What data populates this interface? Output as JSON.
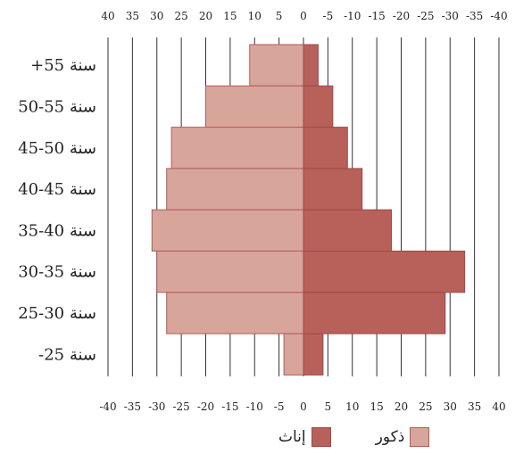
{
  "chart_data": {
    "type": "bar",
    "orientation": "horizontal",
    "layout": "population-pyramid",
    "categories": [
      "+55 سنة",
      "50-55 سنة",
      "45-50 سنة",
      "40-45 سنة",
      "35-40 سنة",
      "30-35 سنة",
      "25-30 سنة",
      "-25 سنة"
    ],
    "series": [
      {
        "name": "ذكور",
        "side": "left",
        "color": "#d8a59b",
        "values": [
          11,
          20,
          27,
          28,
          31,
          30,
          28,
          4
        ]
      },
      {
        "name": "إناث",
        "side": "right",
        "color": "#b8605a",
        "values": [
          3,
          6,
          9,
          12,
          18,
          33,
          29,
          4
        ]
      }
    ],
    "xlim": [
      -40,
      40
    ],
    "top_tick_labels": [
      "40",
      "35",
      "30",
      "25",
      "20",
      "15",
      "10",
      "5",
      "0",
      "-5",
      "-10",
      "-15",
      "-20",
      "-25",
      "-30",
      "-35",
      "-40"
    ],
    "bottom_tick_labels": [
      "-40",
      "-35",
      "-30",
      "-25",
      "-20",
      "-15",
      "-10",
      "-5",
      "0",
      "5",
      "10",
      "15",
      "20",
      "25",
      "30",
      "35",
      "40"
    ],
    "grid": true,
    "legend_position": "bottom-center"
  }
}
